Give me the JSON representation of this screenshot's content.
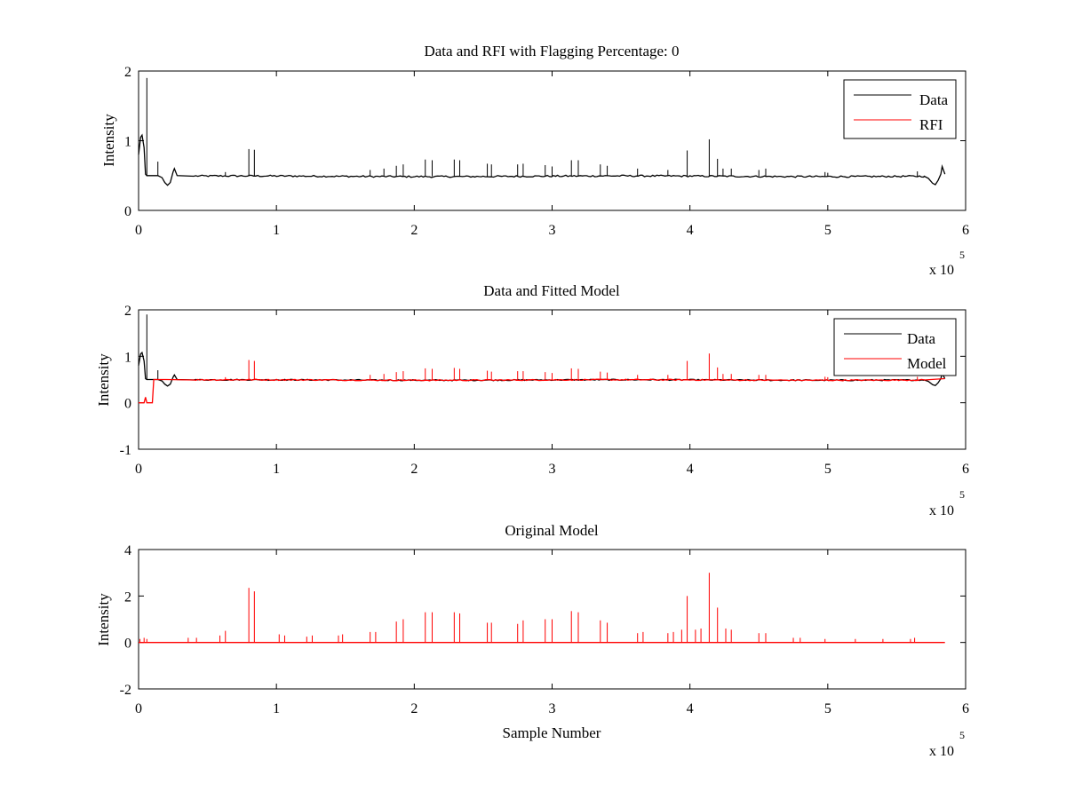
{
  "figure": {
    "background": "#ffffff",
    "data_color": "#000000",
    "model_color": "#ff0000"
  },
  "chart_data": [
    {
      "type": "line",
      "title": "Data and RFI with Flagging Percentage: 0",
      "xlabel": "",
      "ylabel": "Intensity",
      "xlim": [
        0,
        600000
      ],
      "ylim": [
        0,
        2
      ],
      "xticks": [
        0,
        1,
        2,
        3,
        4,
        5,
        6
      ],
      "yticks": [
        0,
        1,
        2
      ],
      "x_multiplier_label": "x 10",
      "x_multiplier_exponent": "5",
      "legend": {
        "location": "top-right",
        "entries": [
          "Data",
          "RFI"
        ]
      },
      "series": [
        {
          "name": "Data",
          "color": "#000000",
          "baseline": 0.49,
          "start_segment": [
            [
              0,
              0.8
            ],
            [
              1500,
              1.05
            ],
            [
              2500,
              1.08
            ],
            [
              4000,
              0.9
            ],
            [
              5000,
              0.52
            ],
            [
              6000,
              0.5
            ],
            [
              14000,
              0.5
            ],
            [
              17000,
              0.47
            ],
            [
              19000,
              0.4
            ],
            [
              21000,
              0.36
            ],
            [
              23000,
              0.4
            ],
            [
              25000,
              0.55
            ],
            [
              26000,
              0.6
            ],
            [
              28000,
              0.5
            ],
            [
              40000,
              0.49
            ]
          ],
          "end_segment": [
            [
              570000,
              0.49
            ],
            [
              573000,
              0.46
            ],
            [
              576000,
              0.39
            ],
            [
              578000,
              0.37
            ],
            [
              580000,
              0.43
            ],
            [
              582000,
              0.52
            ],
            [
              583000,
              0.63
            ],
            [
              585000,
              0.52
            ]
          ],
          "spikes": [
            [
              6000,
              1.9
            ],
            [
              14000,
              0.7
            ],
            [
              63000,
              0.55
            ],
            [
              80000,
              0.88
            ],
            [
              84000,
              0.87
            ],
            [
              168000,
              0.58
            ],
            [
              178000,
              0.6
            ],
            [
              187000,
              0.64
            ],
            [
              192000,
              0.66
            ],
            [
              208000,
              0.73
            ],
            [
              213000,
              0.72
            ],
            [
              229000,
              0.73
            ],
            [
              233000,
              0.72
            ],
            [
              253000,
              0.67
            ],
            [
              256000,
              0.66
            ],
            [
              275000,
              0.66
            ],
            [
              279000,
              0.67
            ],
            [
              295000,
              0.65
            ],
            [
              300000,
              0.63
            ],
            [
              314000,
              0.72
            ],
            [
              319000,
              0.72
            ],
            [
              335000,
              0.66
            ],
            [
              340000,
              0.64
            ],
            [
              362000,
              0.6
            ],
            [
              384000,
              0.58
            ],
            [
              398000,
              0.86
            ],
            [
              414000,
              1.02
            ],
            [
              420000,
              0.74
            ],
            [
              424000,
              0.6
            ],
            [
              430000,
              0.6
            ],
            [
              450000,
              0.58
            ],
            [
              455000,
              0.6
            ],
            [
              498000,
              0.55
            ],
            [
              500000,
              0.54
            ],
            [
              565000,
              0.56
            ]
          ]
        },
        {
          "name": "RFI",
          "color": "#ff0000",
          "values": []
        }
      ]
    },
    {
      "type": "line",
      "title": "Data and Fitted Model",
      "xlabel": "",
      "ylabel": "Intensity",
      "xlim": [
        0,
        600000
      ],
      "ylim": [
        -1,
        2
      ],
      "xticks": [
        0,
        1,
        2,
        3,
        4,
        5,
        6
      ],
      "yticks": [
        -1,
        0,
        1,
        2
      ],
      "x_multiplier_label": "x 10",
      "x_multiplier_exponent": "5",
      "legend": {
        "location": "top-right",
        "entries": [
          "Data",
          "Model"
        ]
      },
      "series": [
        {
          "name": "Data",
          "color": "#000000",
          "baseline": 0.49,
          "start_segment": [
            [
              0,
              0.8
            ],
            [
              1500,
              1.05
            ],
            [
              2500,
              1.08
            ],
            [
              4000,
              0.9
            ],
            [
              5000,
              0.52
            ],
            [
              6000,
              0.5
            ],
            [
              14000,
              0.5
            ],
            [
              17000,
              0.47
            ],
            [
              19000,
              0.4
            ],
            [
              21000,
              0.36
            ],
            [
              23000,
              0.4
            ],
            [
              25000,
              0.55
            ],
            [
              26000,
              0.6
            ],
            [
              28000,
              0.5
            ],
            [
              40000,
              0.49
            ]
          ],
          "end_segment": [
            [
              570000,
              0.49
            ],
            [
              573000,
              0.46
            ],
            [
              576000,
              0.39
            ],
            [
              578000,
              0.37
            ],
            [
              580000,
              0.43
            ],
            [
              582000,
              0.52
            ],
            [
              583000,
              0.63
            ],
            [
              585000,
              0.52
            ]
          ],
          "spikes": [
            [
              6000,
              1.9
            ],
            [
              14000,
              0.7
            ]
          ]
        },
        {
          "name": "Model",
          "color": "#ff0000",
          "baseline": 0.49,
          "start_segment": [
            [
              0,
              0.0
            ],
            [
              4000,
              0.0
            ],
            [
              5000,
              0.12
            ],
            [
              6000,
              0.0
            ],
            [
              10000,
              0.0
            ],
            [
              11000,
              0.5
            ],
            [
              20000,
              0.5
            ],
            [
              40000,
              0.49
            ]
          ],
          "end_segment": [
            [
              570000,
              0.49
            ],
            [
              585000,
              0.52
            ]
          ],
          "spikes": [
            [
              63000,
              0.55
            ],
            [
              80000,
              0.92
            ],
            [
              84000,
              0.9
            ],
            [
              168000,
              0.6
            ],
            [
              178000,
              0.62
            ],
            [
              187000,
              0.66
            ],
            [
              192000,
              0.68
            ],
            [
              208000,
              0.74
            ],
            [
              213000,
              0.73
            ],
            [
              229000,
              0.75
            ],
            [
              233000,
              0.73
            ],
            [
              253000,
              0.69
            ],
            [
              256000,
              0.67
            ],
            [
              275000,
              0.68
            ],
            [
              279000,
              0.68
            ],
            [
              295000,
              0.66
            ],
            [
              300000,
              0.64
            ],
            [
              314000,
              0.74
            ],
            [
              319000,
              0.73
            ],
            [
              335000,
              0.67
            ],
            [
              340000,
              0.65
            ],
            [
              362000,
              0.6
            ],
            [
              384000,
              0.6
            ],
            [
              398000,
              0.9
            ],
            [
              414000,
              1.06
            ],
            [
              420000,
              0.76
            ],
            [
              424000,
              0.62
            ],
            [
              430000,
              0.62
            ],
            [
              450000,
              0.6
            ],
            [
              455000,
              0.6
            ],
            [
              498000,
              0.56
            ],
            [
              500000,
              0.55
            ],
            [
              565000,
              0.56
            ]
          ]
        }
      ]
    },
    {
      "type": "line",
      "title": "Original Model",
      "xlabel": "Sample Number",
      "ylabel": "Intensity",
      "xlim": [
        0,
        600000
      ],
      "ylim": [
        -2,
        4
      ],
      "xticks": [
        0,
        1,
        2,
        3,
        4,
        5,
        6
      ],
      "yticks": [
        -2,
        0,
        2,
        4
      ],
      "x_multiplier_label": "x 10",
      "x_multiplier_exponent": "5",
      "legend": null,
      "series": [
        {
          "name": "",
          "color": "#ff0000",
          "baseline": 0.0,
          "start_segment": [
            [
              0,
              0.0
            ],
            [
              585000,
              0.0
            ]
          ],
          "end_segment": [],
          "spikes": [
            [
              1000,
              0.15
            ],
            [
              4000,
              0.2
            ],
            [
              6000,
              0.15
            ],
            [
              36000,
              0.2
            ],
            [
              42000,
              0.2
            ],
            [
              59000,
              0.3
            ],
            [
              63000,
              0.5
            ],
            [
              80000,
              2.35
            ],
            [
              84000,
              2.2
            ],
            [
              102000,
              0.35
            ],
            [
              106000,
              0.3
            ],
            [
              122000,
              0.25
            ],
            [
              126000,
              0.3
            ],
            [
              145000,
              0.3
            ],
            [
              148000,
              0.35
            ],
            [
              168000,
              0.45
            ],
            [
              172000,
              0.45
            ],
            [
              187000,
              0.9
            ],
            [
              192000,
              1.0
            ],
            [
              208000,
              1.3
            ],
            [
              213000,
              1.3
            ],
            [
              229000,
              1.3
            ],
            [
              233000,
              1.25
            ],
            [
              253000,
              0.85
            ],
            [
              256000,
              0.85
            ],
            [
              275000,
              0.8
            ],
            [
              279000,
              0.95
            ],
            [
              295000,
              1.0
            ],
            [
              300000,
              1.0
            ],
            [
              314000,
              1.35
            ],
            [
              319000,
              1.3
            ],
            [
              335000,
              0.95
            ],
            [
              340000,
              0.85
            ],
            [
              362000,
              0.4
            ],
            [
              366000,
              0.45
            ],
            [
              384000,
              0.4
            ],
            [
              388000,
              0.45
            ],
            [
              394000,
              0.55
            ],
            [
              398000,
              2.0
            ],
            [
              404000,
              0.55
            ],
            [
              408000,
              0.6
            ],
            [
              414000,
              3.0
            ],
            [
              420000,
              1.5
            ],
            [
              426000,
              0.6
            ],
            [
              430000,
              0.55
            ],
            [
              450000,
              0.4
            ],
            [
              455000,
              0.4
            ],
            [
              475000,
              0.2
            ],
            [
              480000,
              0.2
            ],
            [
              498000,
              0.15
            ],
            [
              520000,
              0.15
            ],
            [
              540000,
              0.15
            ],
            [
              560000,
              0.15
            ],
            [
              563000,
              0.2
            ]
          ]
        }
      ]
    }
  ]
}
